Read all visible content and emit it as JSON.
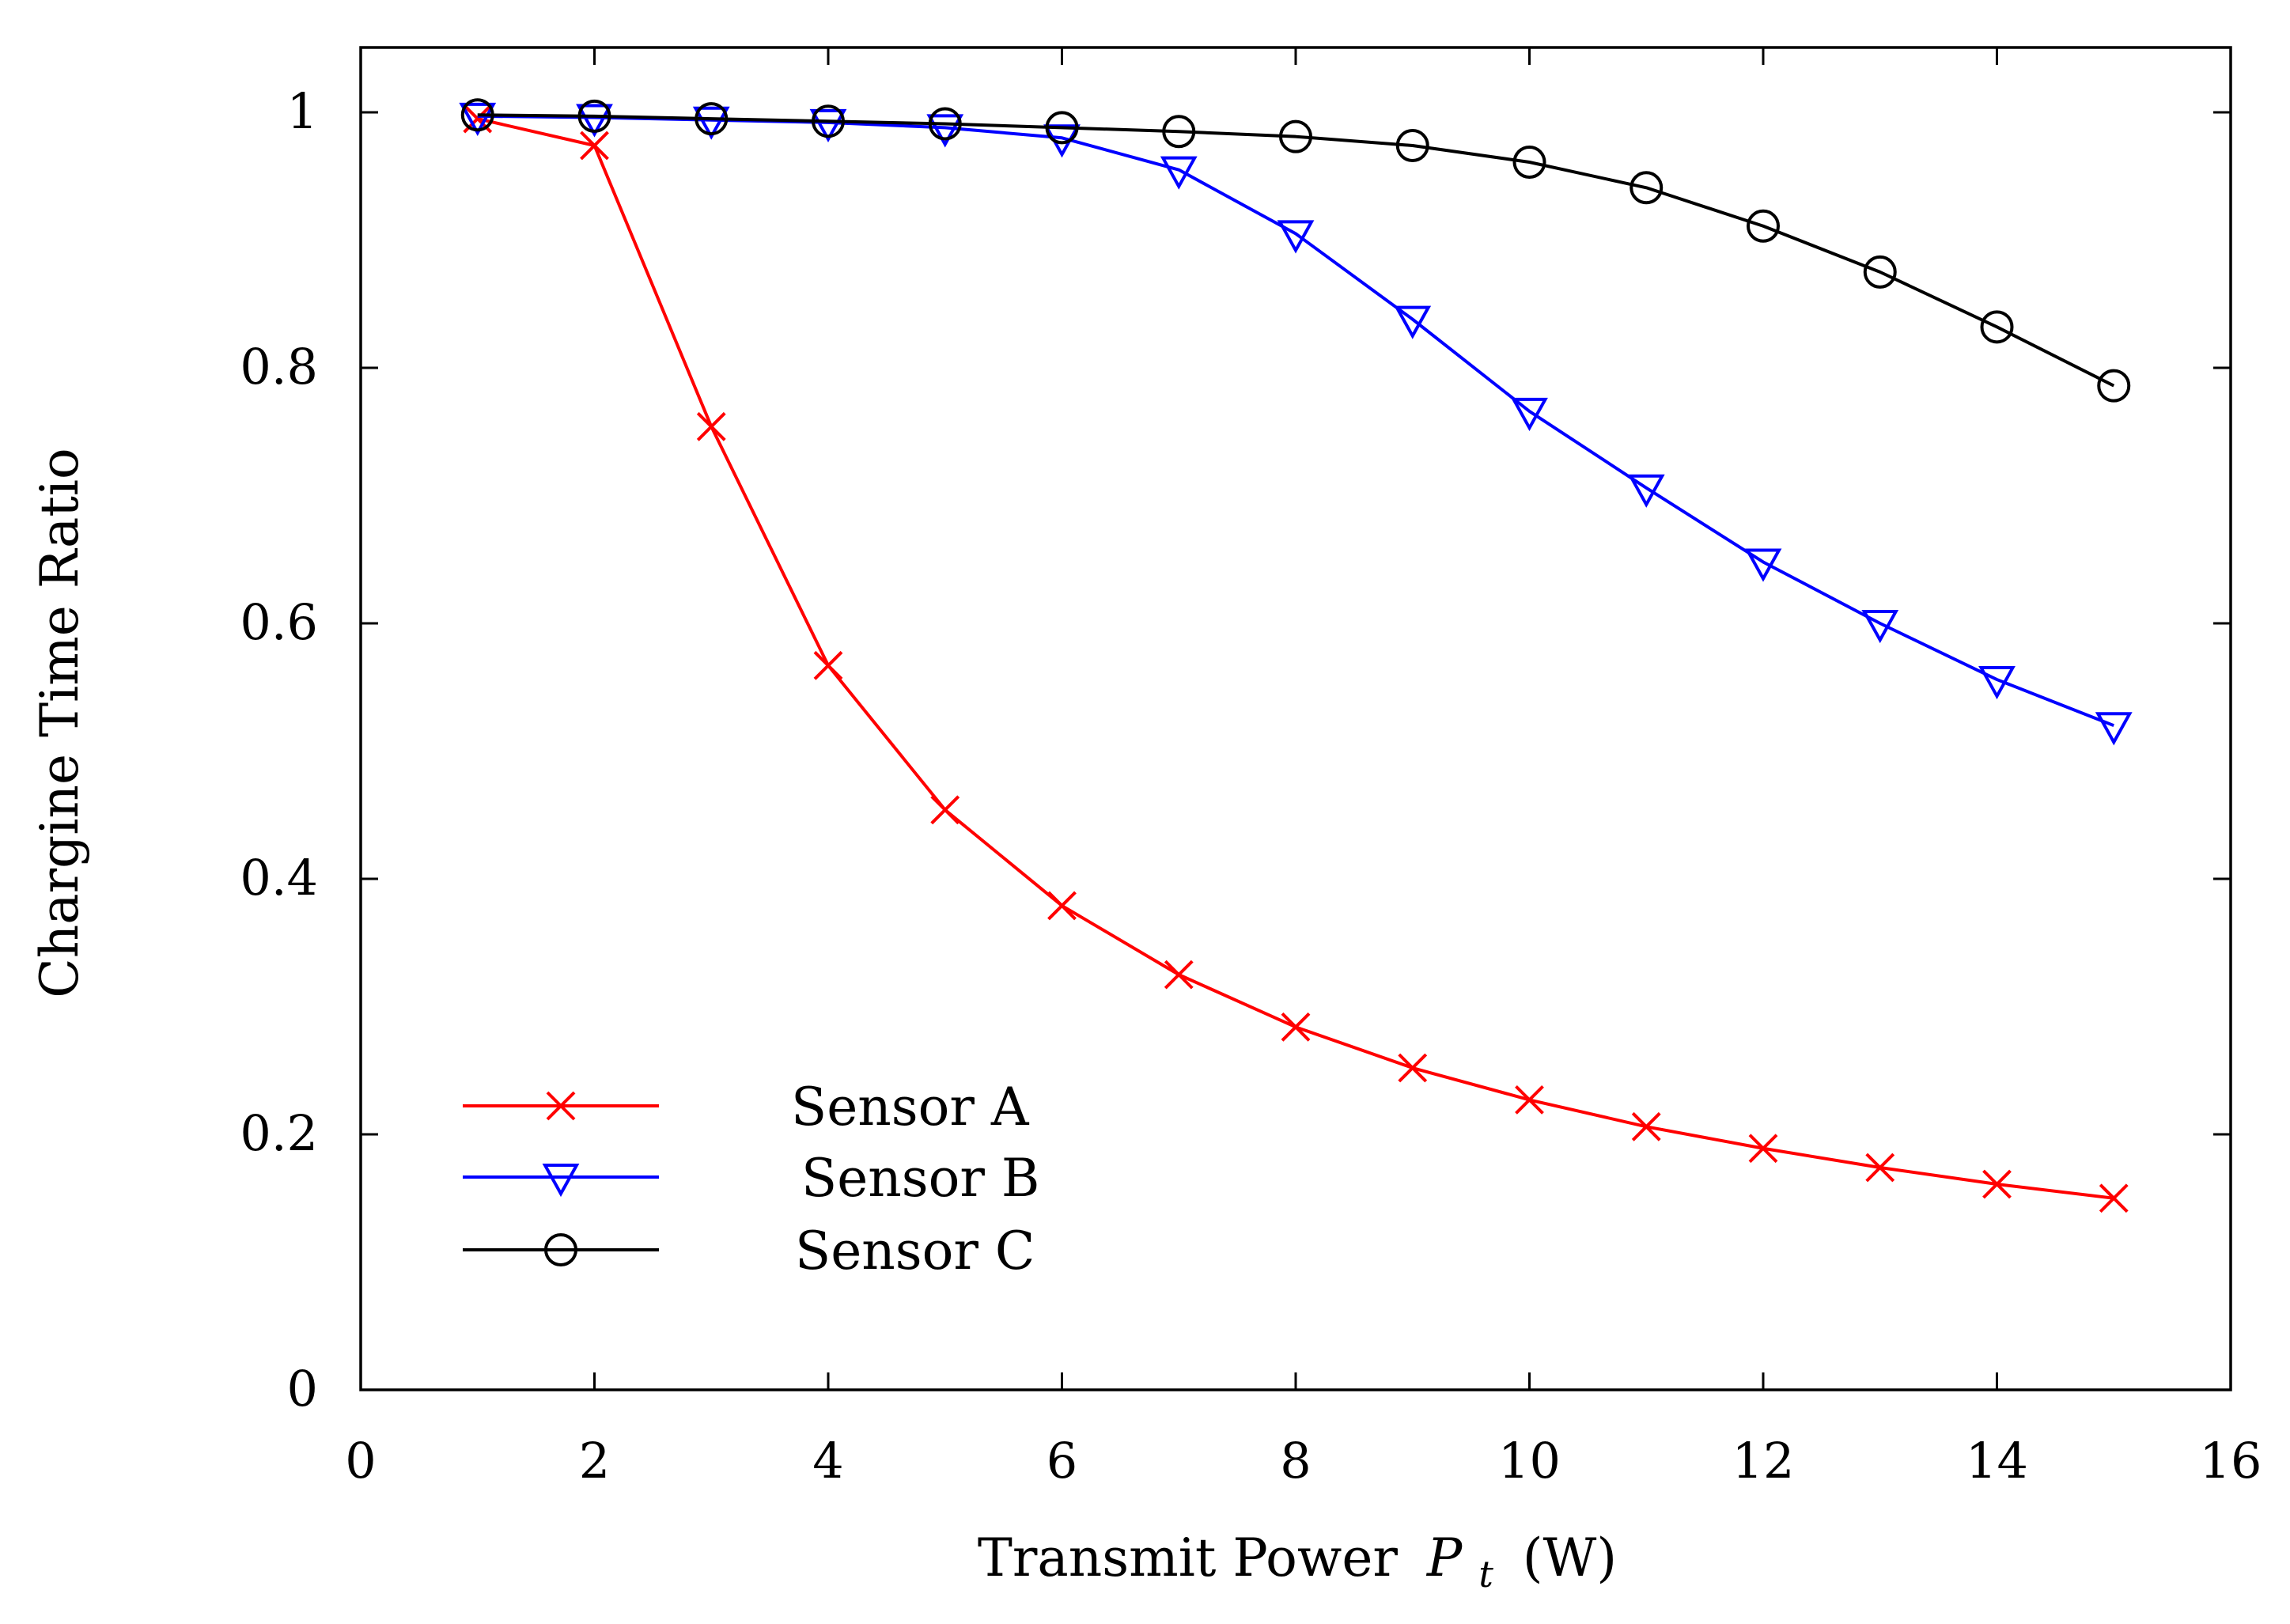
{
  "chart_data": {
    "type": "line",
    "title": "",
    "xlabel": "Transmit Power",
    "xlabel_symbol": "P",
    "xlabel_subscript": "t",
    "xlabel_unit": "(W)",
    "ylabel": "Chargine Time Ratio",
    "xlim": [
      0,
      16
    ],
    "ylim": [
      0,
      1.05
    ],
    "xticks": [
      0,
      2,
      4,
      6,
      8,
      10,
      12,
      14,
      16
    ],
    "xtick_labels": [
      "0",
      "2",
      "4",
      "6",
      "8",
      "10",
      "12",
      "14",
      "16"
    ],
    "yticks": [
      0,
      0.2,
      0.4,
      0.6,
      0.8,
      1
    ],
    "ytick_labels": [
      "0",
      "0.2",
      "0.4",
      "0.6",
      "0.8",
      "1"
    ],
    "grid": false,
    "legend_position": "bottom-left",
    "x": [
      1,
      2,
      3,
      4,
      5,
      6,
      7,
      8,
      9,
      10,
      11,
      12,
      13,
      14,
      15
    ],
    "series": [
      {
        "name": "Sensor A",
        "color": "#ff0000",
        "marker": "x",
        "values": [
          0.995,
          0.974,
          0.754,
          0.567,
          0.454,
          0.379,
          0.325,
          0.284,
          0.252,
          0.227,
          0.206,
          0.189,
          0.174,
          0.161,
          0.15
        ]
      },
      {
        "name": "Sensor B",
        "color": "#0000ff",
        "marker": "triangle-down",
        "values": [
          0.997,
          0.996,
          0.994,
          0.992,
          0.988,
          0.98,
          0.955,
          0.905,
          0.838,
          0.766,
          0.706,
          0.648,
          0.6,
          0.556,
          0.52
        ]
      },
      {
        "name": "Sensor C",
        "color": "#000000",
        "marker": "circle",
        "values": [
          0.998,
          0.997,
          0.995,
          0.993,
          0.991,
          0.988,
          0.985,
          0.981,
          0.974,
          0.961,
          0.941,
          0.911,
          0.875,
          0.832,
          0.786
        ]
      }
    ]
  }
}
